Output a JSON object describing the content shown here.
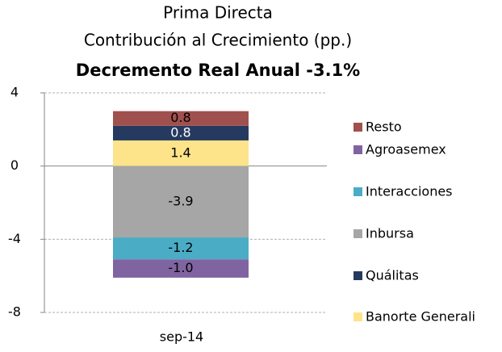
{
  "chart_data": {
    "type": "stacked_bar",
    "title": [
      "Prima Directa",
      "Contribución al Crecimiento (pp.)",
      "Decremento Real Anual -3.1%"
    ],
    "categories": [
      "sep-14"
    ],
    "series": [
      {
        "name": "Banorte Generali",
        "color": "#fde38a",
        "values": [
          1.4
        ]
      },
      {
        "name": "Quálitas",
        "color": "#253a5e",
        "values": [
          0.8
        ]
      },
      {
        "name": "Inbursa",
        "color": "#a6a6a6",
        "values": [
          -3.9
        ]
      },
      {
        "name": "Interacciones",
        "color": "#4bacc6",
        "values": [
          -1.2
        ]
      },
      {
        "name": "Agroasemex",
        "color": "#8064a2",
        "values": [
          -1
        ],
        "value_labels": [
          "-1.0"
        ]
      },
      {
        "name": "Resto",
        "color": "#a0504d",
        "values": [
          0.8
        ]
      }
    ],
    "ylim": [
      -8,
      4
    ],
    "yticks": [
      -8,
      -4,
      0,
      4
    ],
    "grid": true,
    "legend": "right"
  }
}
